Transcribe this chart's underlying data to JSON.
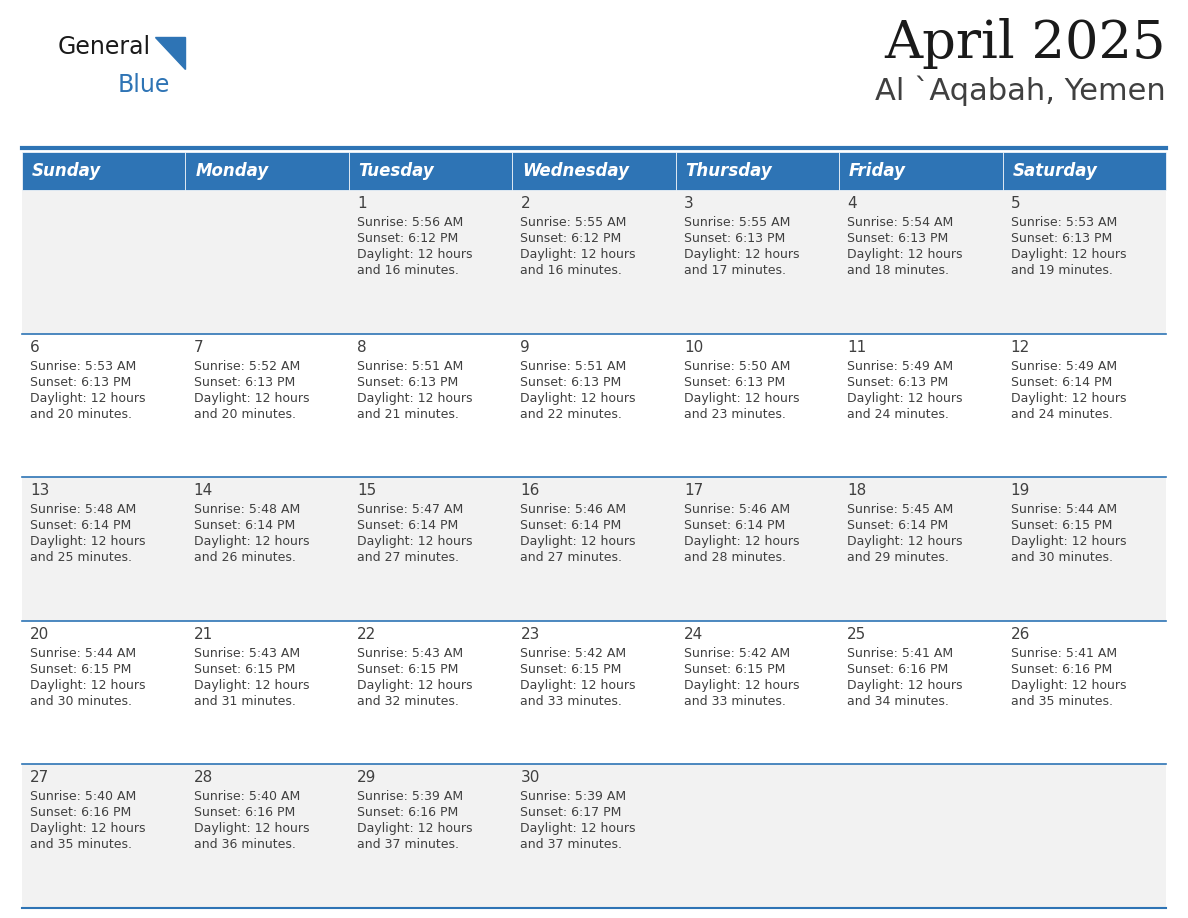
{
  "title": "April 2025",
  "subtitle": "Al `Aqabah, Yemen",
  "days_of_week": [
    "Sunday",
    "Monday",
    "Tuesday",
    "Wednesday",
    "Thursday",
    "Friday",
    "Saturday"
  ],
  "header_bg": "#2E74B5",
  "header_text": "#FFFFFF",
  "cell_bg_odd": "#F2F2F2",
  "cell_bg_even": "#FFFFFF",
  "separator_color": "#2E74B5",
  "text_color": "#404040",
  "calendar_data": [
    [
      {
        "day": null,
        "sunrise": null,
        "sunset": null,
        "daylight": null
      },
      {
        "day": null,
        "sunrise": null,
        "sunset": null,
        "daylight": null
      },
      {
        "day": 1,
        "sunrise": "5:56 AM",
        "sunset": "6:12 PM",
        "daylight": "12 hours\nand 16 minutes."
      },
      {
        "day": 2,
        "sunrise": "5:55 AM",
        "sunset": "6:12 PM",
        "daylight": "12 hours\nand 16 minutes."
      },
      {
        "day": 3,
        "sunrise": "5:55 AM",
        "sunset": "6:13 PM",
        "daylight": "12 hours\nand 17 minutes."
      },
      {
        "day": 4,
        "sunrise": "5:54 AM",
        "sunset": "6:13 PM",
        "daylight": "12 hours\nand 18 minutes."
      },
      {
        "day": 5,
        "sunrise": "5:53 AM",
        "sunset": "6:13 PM",
        "daylight": "12 hours\nand 19 minutes."
      }
    ],
    [
      {
        "day": 6,
        "sunrise": "5:53 AM",
        "sunset": "6:13 PM",
        "daylight": "12 hours\nand 20 minutes."
      },
      {
        "day": 7,
        "sunrise": "5:52 AM",
        "sunset": "6:13 PM",
        "daylight": "12 hours\nand 20 minutes."
      },
      {
        "day": 8,
        "sunrise": "5:51 AM",
        "sunset": "6:13 PM",
        "daylight": "12 hours\nand 21 minutes."
      },
      {
        "day": 9,
        "sunrise": "5:51 AM",
        "sunset": "6:13 PM",
        "daylight": "12 hours\nand 22 minutes."
      },
      {
        "day": 10,
        "sunrise": "5:50 AM",
        "sunset": "6:13 PM",
        "daylight": "12 hours\nand 23 minutes."
      },
      {
        "day": 11,
        "sunrise": "5:49 AM",
        "sunset": "6:13 PM",
        "daylight": "12 hours\nand 24 minutes."
      },
      {
        "day": 12,
        "sunrise": "5:49 AM",
        "sunset": "6:14 PM",
        "daylight": "12 hours\nand 24 minutes."
      }
    ],
    [
      {
        "day": 13,
        "sunrise": "5:48 AM",
        "sunset": "6:14 PM",
        "daylight": "12 hours\nand 25 minutes."
      },
      {
        "day": 14,
        "sunrise": "5:48 AM",
        "sunset": "6:14 PM",
        "daylight": "12 hours\nand 26 minutes."
      },
      {
        "day": 15,
        "sunrise": "5:47 AM",
        "sunset": "6:14 PM",
        "daylight": "12 hours\nand 27 minutes."
      },
      {
        "day": 16,
        "sunrise": "5:46 AM",
        "sunset": "6:14 PM",
        "daylight": "12 hours\nand 27 minutes."
      },
      {
        "day": 17,
        "sunrise": "5:46 AM",
        "sunset": "6:14 PM",
        "daylight": "12 hours\nand 28 minutes."
      },
      {
        "day": 18,
        "sunrise": "5:45 AM",
        "sunset": "6:14 PM",
        "daylight": "12 hours\nand 29 minutes."
      },
      {
        "day": 19,
        "sunrise": "5:44 AM",
        "sunset": "6:15 PM",
        "daylight": "12 hours\nand 30 minutes."
      }
    ],
    [
      {
        "day": 20,
        "sunrise": "5:44 AM",
        "sunset": "6:15 PM",
        "daylight": "12 hours\nand 30 minutes."
      },
      {
        "day": 21,
        "sunrise": "5:43 AM",
        "sunset": "6:15 PM",
        "daylight": "12 hours\nand 31 minutes."
      },
      {
        "day": 22,
        "sunrise": "5:43 AM",
        "sunset": "6:15 PM",
        "daylight": "12 hours\nand 32 minutes."
      },
      {
        "day": 23,
        "sunrise": "5:42 AM",
        "sunset": "6:15 PM",
        "daylight": "12 hours\nand 33 minutes."
      },
      {
        "day": 24,
        "sunrise": "5:42 AM",
        "sunset": "6:15 PM",
        "daylight": "12 hours\nand 33 minutes."
      },
      {
        "day": 25,
        "sunrise": "5:41 AM",
        "sunset": "6:16 PM",
        "daylight": "12 hours\nand 34 minutes."
      },
      {
        "day": 26,
        "sunrise": "5:41 AM",
        "sunset": "6:16 PM",
        "daylight": "12 hours\nand 35 minutes."
      }
    ],
    [
      {
        "day": 27,
        "sunrise": "5:40 AM",
        "sunset": "6:16 PM",
        "daylight": "12 hours\nand 35 minutes."
      },
      {
        "day": 28,
        "sunrise": "5:40 AM",
        "sunset": "6:16 PM",
        "daylight": "12 hours\nand 36 minutes."
      },
      {
        "day": 29,
        "sunrise": "5:39 AM",
        "sunset": "6:16 PM",
        "daylight": "12 hours\nand 37 minutes."
      },
      {
        "day": 30,
        "sunrise": "5:39 AM",
        "sunset": "6:17 PM",
        "daylight": "12 hours\nand 37 minutes."
      },
      {
        "day": null,
        "sunrise": null,
        "sunset": null,
        "daylight": null
      },
      {
        "day": null,
        "sunrise": null,
        "sunset": null,
        "daylight": null
      },
      {
        "day": null,
        "sunrise": null,
        "sunset": null,
        "daylight": null
      }
    ]
  ],
  "title_fontsize": 38,
  "subtitle_fontsize": 22,
  "header_fontsize": 12,
  "day_number_fontsize": 11,
  "cell_text_fontsize": 9
}
